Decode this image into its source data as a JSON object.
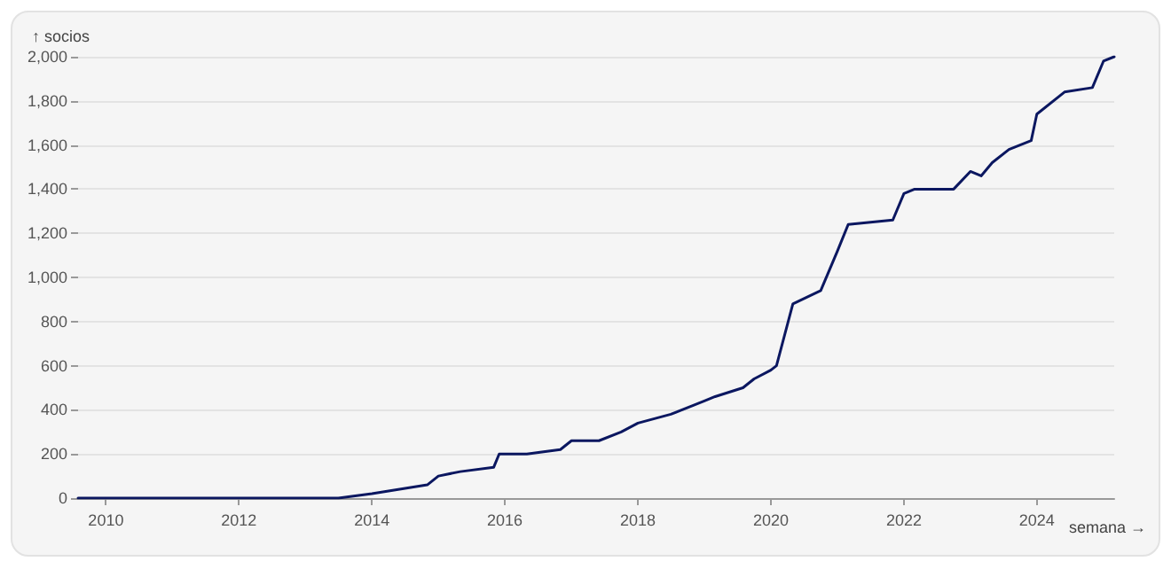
{
  "chart_data": {
    "type": "line",
    "xlabel": "semana →",
    "ylabel": "↑ socios",
    "x": [
      "2009-08",
      "2013-07",
      "2014-01",
      "2014-11",
      "2015-01",
      "2015-05",
      "2015-11",
      "2015-12",
      "2016-05",
      "2016-11",
      "2017-01",
      "2017-06",
      "2017-10",
      "2018-01",
      "2018-07",
      "2018-11",
      "2019-01",
      "2019-03",
      "2019-08",
      "2019-10",
      "2020-01",
      "2020-02",
      "2020-05",
      "2020-10",
      "2021-01",
      "2021-03",
      "2021-11",
      "2022-01",
      "2022-03",
      "2022-10",
      "2023-01",
      "2023-03",
      "2023-05",
      "2023-08",
      "2023-12",
      "2024-01",
      "2024-06",
      "2024-11",
      "2025-01",
      "2025-03"
    ],
    "series": [
      {
        "color": "#0b1760",
        "values": [
          0,
          0,
          20,
          60,
          100,
          120,
          140,
          200,
          200,
          220,
          260,
          260,
          300,
          340,
          380,
          420,
          440,
          460,
          500,
          540,
          580,
          600,
          880,
          940,
          1120,
          1240,
          1260,
          1380,
          1400,
          1400,
          1480,
          1460,
          1520,
          1580,
          1620,
          1740,
          1840,
          1860,
          1980,
          2000
        ]
      }
    ],
    "xlim": [
      "2009-08",
      "2025-03"
    ],
    "xticks": [
      "2010",
      "2012",
      "2014",
      "2016",
      "2018",
      "2020",
      "2022",
      "2024"
    ],
    "ylim": [
      0,
      2000
    ],
    "yticks": [
      0,
      {
        "value": 200,
        "label": "200"
      },
      {
        "value": 400,
        "label": "400"
      },
      {
        "value": 600,
        "label": "600"
      },
      {
        "value": 800,
        "label": "800"
      },
      {
        "value": 1000,
        "label": "1,000"
      },
      {
        "value": 1200,
        "label": "1,200"
      },
      {
        "value": 1400,
        "label": "1,400"
      },
      {
        "value": 1600,
        "label": "1,600"
      },
      {
        "value": 1800,
        "label": "1,800"
      },
      {
        "value": 2000,
        "label": "2,000"
      }
    ],
    "grid": "y",
    "marker": "none",
    "line_style": "solid"
  }
}
